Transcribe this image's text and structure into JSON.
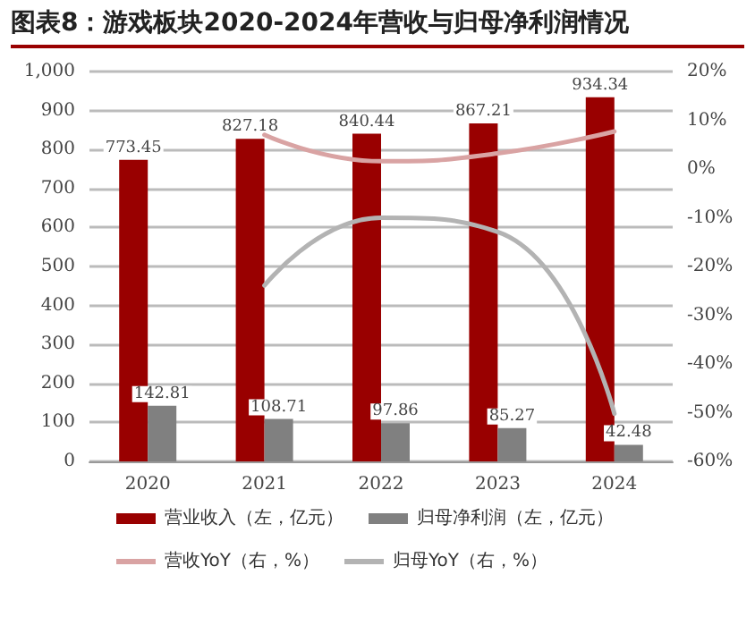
{
  "chart_data": {
    "type": "bar",
    "title": "图表8：游戏板块2020-2024年营收与归母净利润情况",
    "categories": [
      "2020",
      "2021",
      "2022",
      "2023",
      "2024"
    ],
    "series": [
      {
        "name": "营业收入（左，亿元）",
        "color": "#990000",
        "values": [
          773.45,
          827.18,
          840.44,
          867.21,
          934.34
        ],
        "value_labels": [
          "773.45",
          "827.18",
          "840.44",
          "867.21",
          "934.34"
        ]
      },
      {
        "name": "归母净利润（左，亿元）",
        "color": "#808080",
        "values": [
          142.81,
          108.71,
          97.86,
          85.27,
          42.48
        ],
        "value_labels": [
          "142.81",
          "108.71",
          "97.86",
          "85.27",
          "42.48"
        ]
      },
      {
        "name": "营收YoY（右，%）",
        "type": "line",
        "axis": "y2",
        "color": "#d9a3a3",
        "values": [
          null,
          7,
          1.6,
          3.2,
          7.7
        ]
      },
      {
        "name": "归母YoY（右，%）",
        "type": "line",
        "axis": "y2",
        "color": "#b3b3b3",
        "values": [
          null,
          -23.9,
          -10,
          -12.9,
          -50.2
        ]
      }
    ],
    "ylim": [
      0,
      1000
    ],
    "yticks": [
      0,
      100,
      200,
      300,
      400,
      500,
      600,
      700,
      800,
      900,
      {
        "value": 1000,
        "label": "1,000"
      }
    ],
    "y2lim": [
      -60,
      20
    ],
    "y2ticks": [
      {
        "value": -60,
        "label": "-60%"
      },
      {
        "value": -50,
        "label": "-50%"
      },
      {
        "value": -40,
        "label": "-40%"
      },
      {
        "value": -30,
        "label": "-30%"
      },
      {
        "value": -20,
        "label": "-20%"
      },
      {
        "value": -10,
        "label": "-10%"
      },
      {
        "value": 0,
        "label": "0%"
      },
      {
        "value": 10,
        "label": "10%"
      },
      {
        "value": 20,
        "label": "20%"
      }
    ],
    "grid": "y",
    "legend": "bottom",
    "marker": "none"
  }
}
